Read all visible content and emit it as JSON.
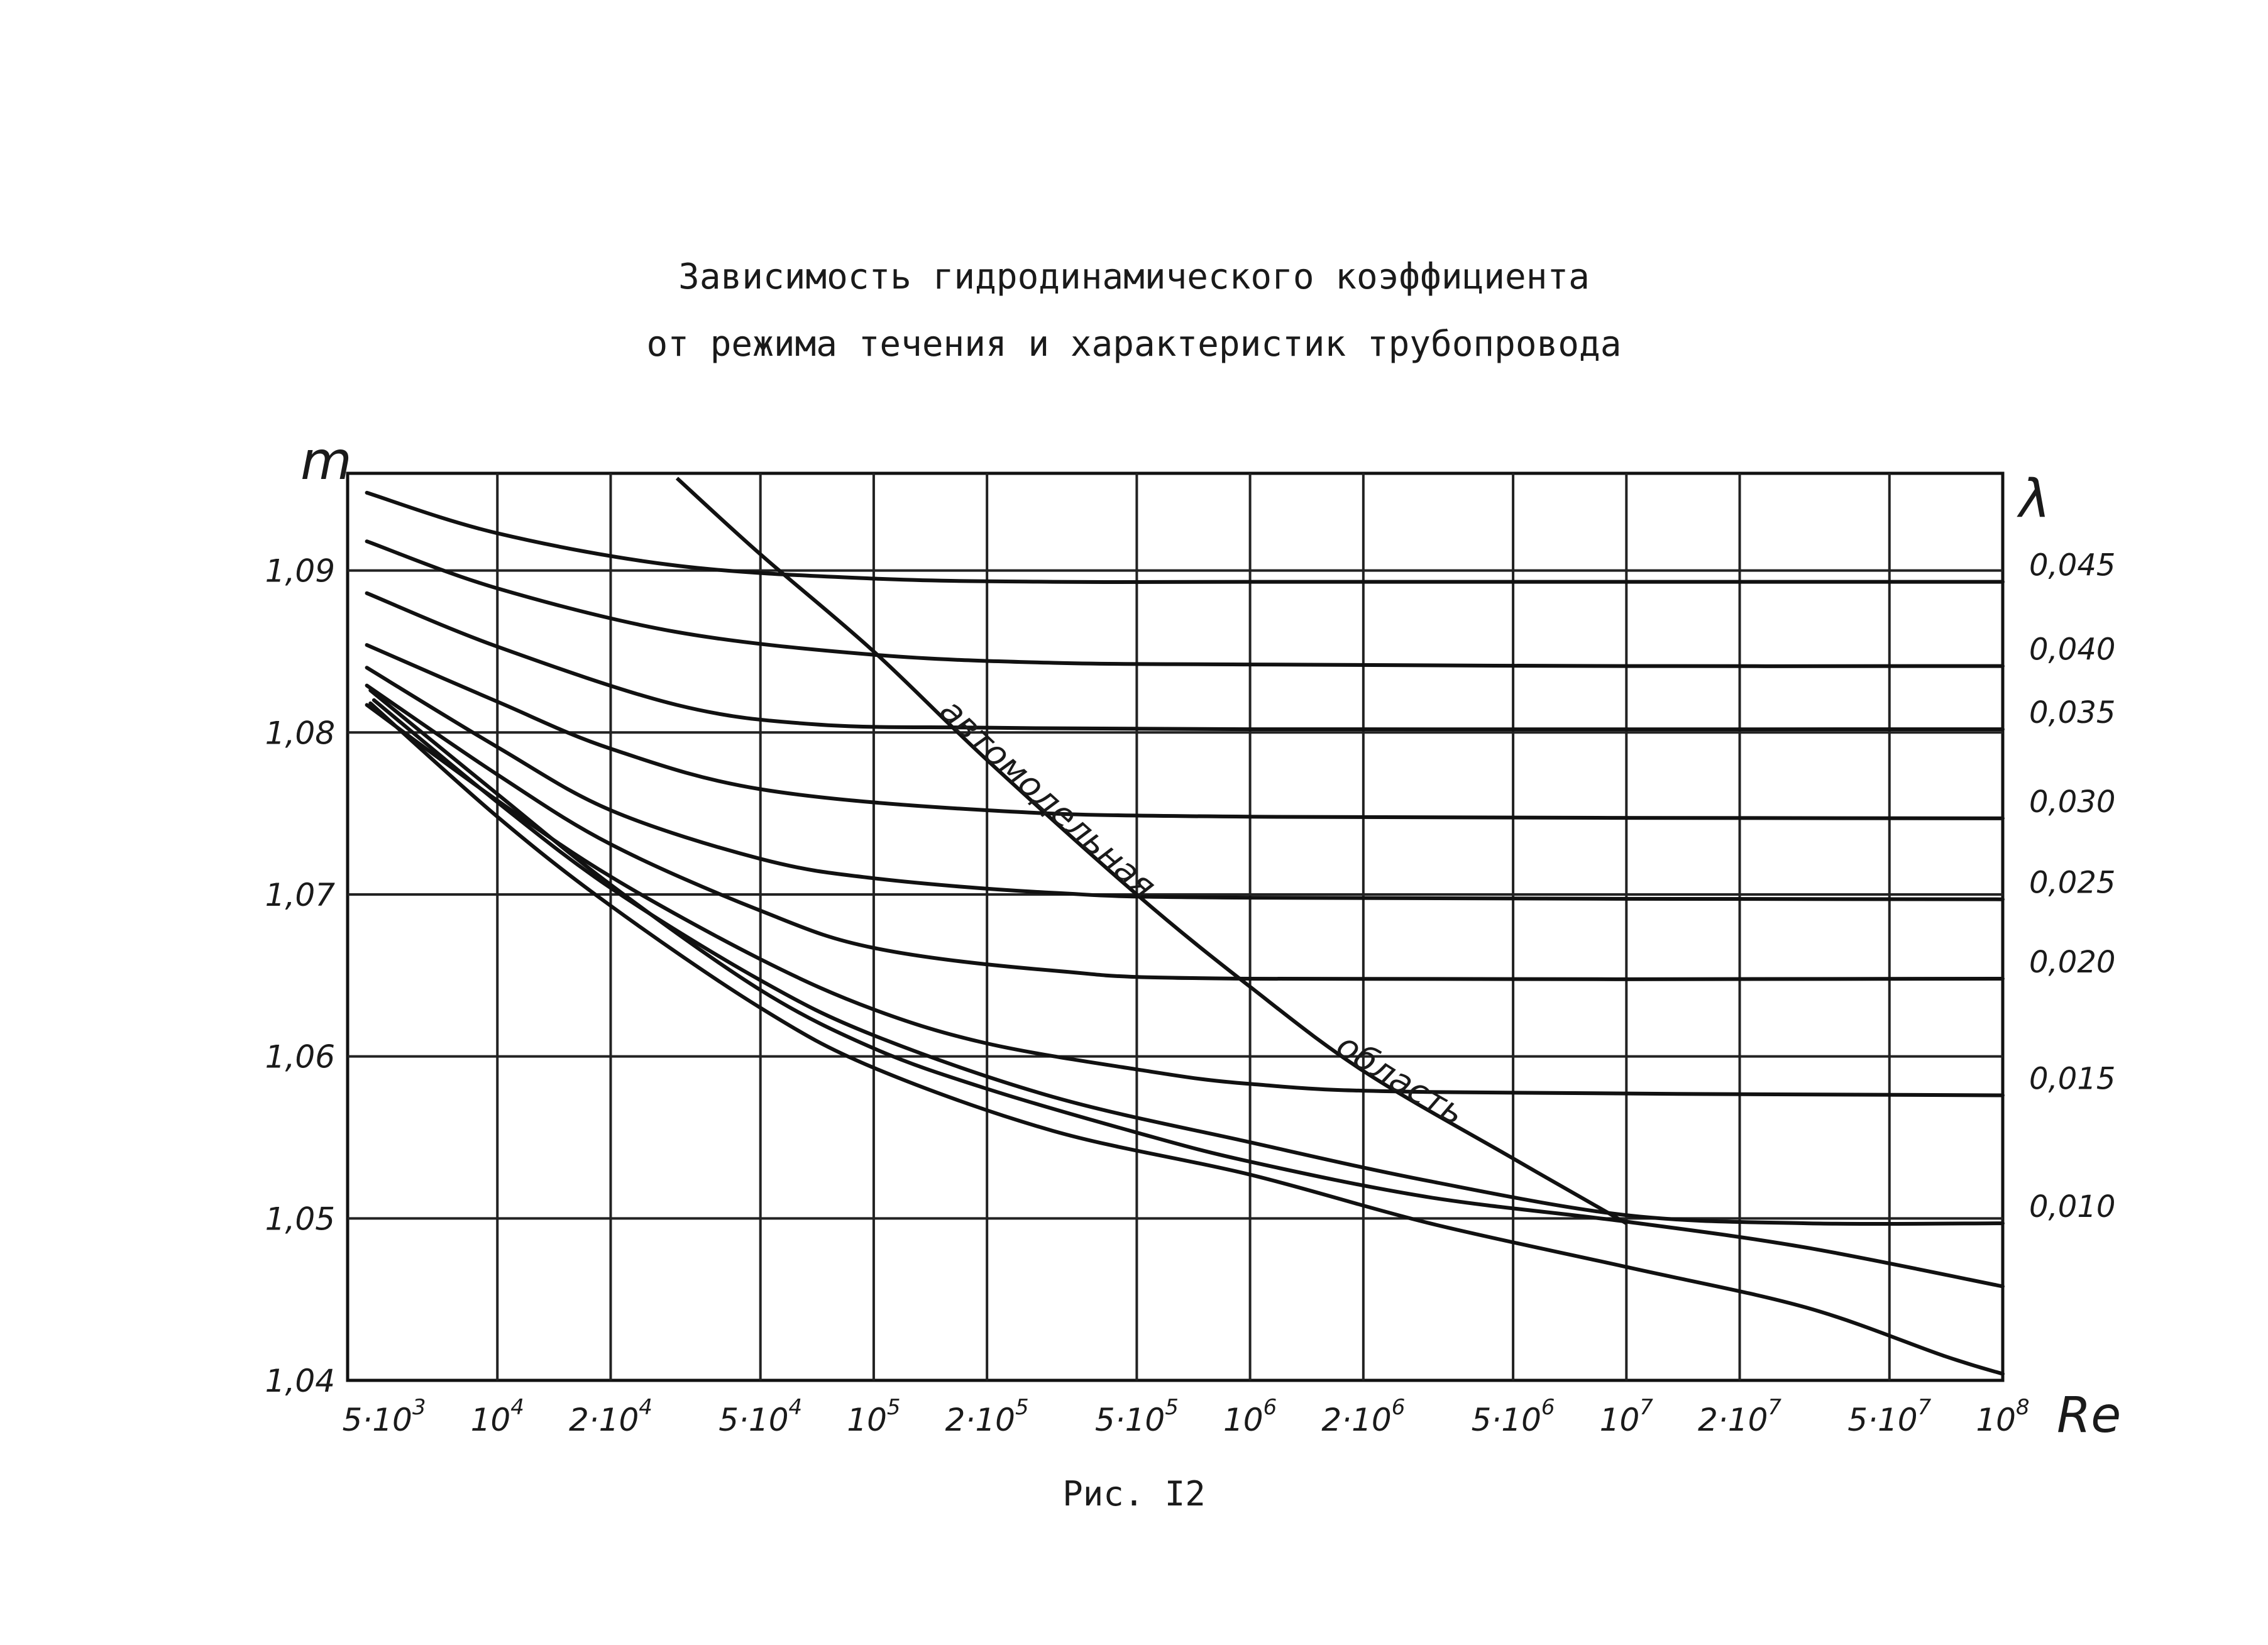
{
  "title": "Зависимость гидродинамического коэффициента",
  "subtitle": "от режима течения и характеристик трубопровода",
  "caption": "Рис. I2",
  "chart_data": {
    "type": "line",
    "x_scale": "log",
    "xlim": [
      4000,
      100000000
    ],
    "ylim": [
      1.04,
      1.096
    ],
    "xlabel": "Re",
    "ylabel": "m",
    "right_axis_label": "λ",
    "grid": true,
    "x_ticks": [
      {
        "value": 5000,
        "mantissa": "5·10",
        "exp": "3"
      },
      {
        "value": 10000,
        "mantissa": "10",
        "exp": "4"
      },
      {
        "value": 20000,
        "mantissa": "2·10",
        "exp": "4"
      },
      {
        "value": 50000,
        "mantissa": "5·10",
        "exp": "4"
      },
      {
        "value": 100000,
        "mantissa": "10",
        "exp": "5"
      },
      {
        "value": 200000,
        "mantissa": "2·10",
        "exp": "5"
      },
      {
        "value": 500000,
        "mantissa": "5·10",
        "exp": "5"
      },
      {
        "value": 1000000,
        "mantissa": "10",
        "exp": "6"
      },
      {
        "value": 2000000,
        "mantissa": "2·10",
        "exp": "6"
      },
      {
        "value": 5000000,
        "mantissa": "5·10",
        "exp": "6"
      },
      {
        "value": 10000000,
        "mantissa": "10",
        "exp": "7"
      },
      {
        "value": 20000000,
        "mantissa": "2·10",
        "exp": "7"
      },
      {
        "value": 50000000,
        "mantissa": "5·10",
        "exp": "7"
      },
      {
        "value": 100000000,
        "mantissa": "10",
        "exp": "8"
      }
    ],
    "y_ticks": [
      {
        "value": 1.04,
        "label": "1,04"
      },
      {
        "value": 1.05,
        "label": "1,05"
      },
      {
        "value": 1.06,
        "label": "1,06"
      },
      {
        "value": 1.07,
        "label": "1,07"
      },
      {
        "value": 1.08,
        "label": "1,08"
      },
      {
        "value": 1.09,
        "label": "1,09"
      }
    ],
    "series": [
      {
        "name": "0,045",
        "points": [
          [
            4500,
            1.0948
          ],
          [
            10000,
            1.0923
          ],
          [
            30000,
            1.0903
          ],
          [
            100000,
            1.0895
          ],
          [
            300000,
            1.0893
          ],
          [
            1000000,
            1.0893
          ],
          [
            10000000,
            1.0893
          ],
          [
            100000000,
            1.0893
          ]
        ]
      },
      {
        "name": "0,040",
        "points": [
          [
            4500,
            1.0918
          ],
          [
            10000,
            1.0889
          ],
          [
            30000,
            1.0862
          ],
          [
            100000,
            1.0848
          ],
          [
            300000,
            1.0843
          ],
          [
            1000000,
            1.0842
          ],
          [
            10000000,
            1.0841
          ],
          [
            100000000,
            1.0841
          ]
        ]
      },
      {
        "name": "0,035",
        "points": [
          [
            4500,
            1.0886
          ],
          [
            10000,
            1.0853
          ],
          [
            30000,
            1.0817
          ],
          [
            70000,
            1.0805
          ],
          [
            200000,
            1.0803
          ],
          [
            1000000,
            1.0802
          ],
          [
            100000000,
            1.0802
          ]
        ]
      },
      {
        "name": "0,030",
        "points": [
          [
            4500,
            1.0854
          ],
          [
            10000,
            1.0819
          ],
          [
            20000,
            1.079
          ],
          [
            50000,
            1.0765
          ],
          [
            200000,
            1.0752
          ],
          [
            1000000,
            1.0748
          ],
          [
            100000000,
            1.0747
          ]
        ]
      },
      {
        "name": "0,025",
        "points": [
          [
            4500,
            1.084
          ],
          [
            10000,
            1.0791
          ],
          [
            20000,
            1.0752
          ],
          [
            50000,
            1.0722
          ],
          [
            100000,
            1.071
          ],
          [
            300000,
            1.0701
          ],
          [
            1000000,
            1.0698
          ],
          [
            100000000,
            1.0697
          ]
        ]
      },
      {
        "name": "0,020",
        "points": [
          [
            4500,
            1.0829
          ],
          [
            10000,
            1.0774
          ],
          [
            20000,
            1.0731
          ],
          [
            50000,
            1.069
          ],
          [
            100000,
            1.0667
          ],
          [
            300000,
            1.0653
          ],
          [
            1000000,
            1.0648
          ],
          [
            100000000,
            1.0648
          ]
        ]
      },
      {
        "name": "0,015",
        "points": [
          [
            4500,
            1.0817
          ],
          [
            10000,
            1.0758
          ],
          [
            20000,
            1.0711
          ],
          [
            50000,
            1.066
          ],
          [
            100000,
            1.0629
          ],
          [
            200000,
            1.0608
          ],
          [
            500000,
            1.0592
          ],
          [
            1000000,
            1.0583
          ],
          [
            3000000,
            1.0578
          ],
          [
            100000000,
            1.0576
          ]
        ]
      },
      {
        "name": "0,010",
        "points": [
          [
            4700,
            1.082
          ],
          [
            10000,
            1.0757
          ],
          [
            20000,
            1.0704
          ],
          [
            50000,
            1.0647
          ],
          [
            100000,
            1.0613
          ],
          [
            300000,
            1.0575
          ],
          [
            1000000,
            1.0547
          ],
          [
            3000000,
            1.0523
          ],
          [
            10000000,
            1.0502
          ],
          [
            30000000,
            1.0497
          ],
          [
            100000000,
            1.0497
          ]
        ]
      },
      {
        "points": [
          [
            4600,
            1.0826
          ],
          [
            10000,
            1.0762
          ],
          [
            20000,
            1.0706
          ],
          [
            50000,
            1.0641
          ],
          [
            100000,
            1.0605
          ],
          [
            200000,
            1.058
          ],
          [
            500000,
            1.0553
          ],
          [
            1000000,
            1.0535
          ],
          [
            3000000,
            1.0513
          ],
          [
            10000000,
            1.0498
          ],
          [
            30000000,
            1.0482
          ],
          [
            100000000,
            1.0458
          ]
        ]
      },
      {
        "points": [
          [
            4600,
            1.0818
          ],
          [
            10000,
            1.0748
          ],
          [
            20000,
            1.0693
          ],
          [
            50000,
            1.063
          ],
          [
            100000,
            1.0593
          ],
          [
            300000,
            1.0554
          ],
          [
            1000000,
            1.0527
          ],
          [
            3000000,
            1.0497
          ],
          [
            10000000,
            1.047
          ],
          [
            30000000,
            1.0445
          ],
          [
            70000000,
            1.0415
          ],
          [
            100000000,
            1.0404
          ]
        ]
      }
    ],
    "boundary_curve": {
      "label_part1": "автомодельная",
      "label_part2": "область",
      "points": [
        [
          30000,
          1.0957
        ],
        [
          50000,
          1.091
        ],
        [
          100000,
          1.085
        ],
        [
          200000,
          1.0783
        ],
        [
          500000,
          1.07
        ],
        [
          1000000,
          1.0643
        ],
        [
          2000000,
          1.0591
        ],
        [
          5000000,
          1.0537
        ],
        [
          10000000,
          1.0497
        ]
      ]
    },
    "right_axis_labels": [
      "0,045",
      "0,040",
      "0,035",
      "0,030",
      "0,025",
      "0,020",
      "0,015",
      "0,010"
    ]
  }
}
